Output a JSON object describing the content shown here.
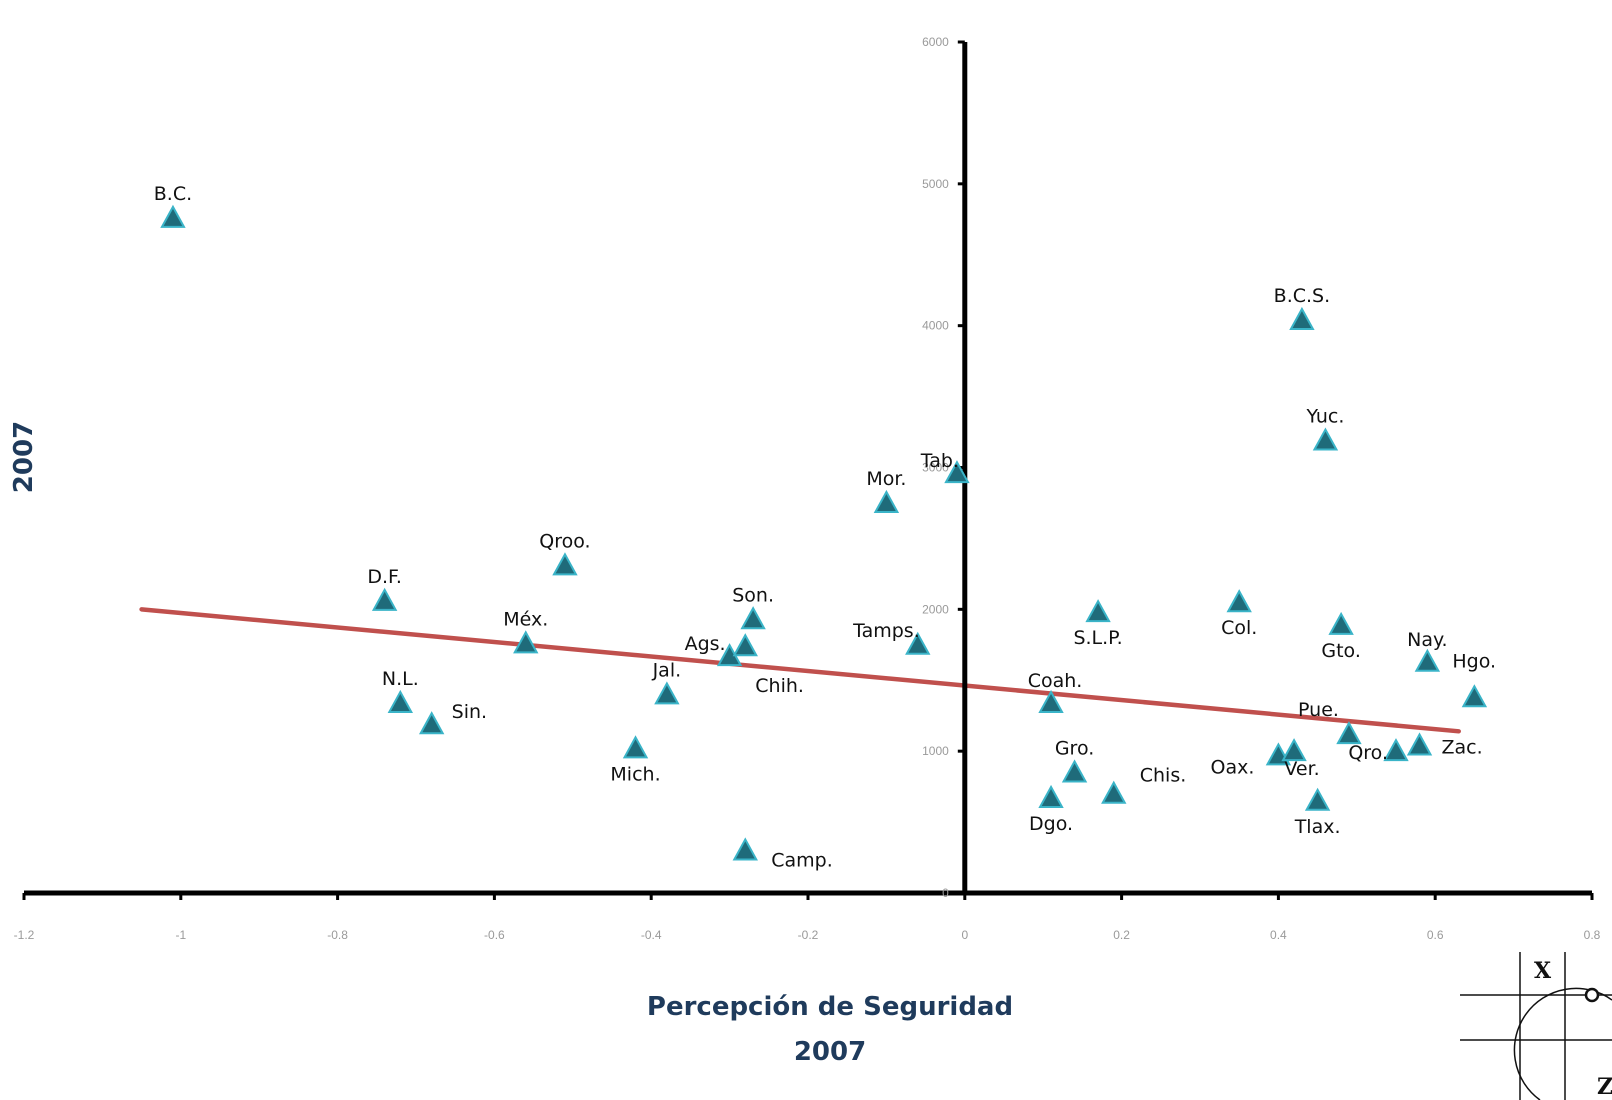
{
  "chart_data": {
    "type": "scatter",
    "xlabel_lines": [
      "Percepción de Seguridad",
      "2007"
    ],
    "ylabel": "2007",
    "xlim": [
      -1.2,
      0.8
    ],
    "ylim": [
      0,
      6000
    ],
    "x_ticks": [
      "-1.2",
      "-1",
      "-0.8",
      "-0.6",
      "-0.4",
      "-0.2",
      "0",
      "0.2",
      "0.4",
      "0.6",
      "0.8"
    ],
    "y_ticks": [
      "0",
      "1000",
      "2000",
      "3000",
      "4000",
      "5000",
      "6000"
    ],
    "marker_color": "#1f6b7a",
    "marker_edge_color": "#3ab4c8",
    "trendline_color": "#c0504d",
    "trendline": {
      "x": [
        -1.05,
        0.63
      ],
      "y": [
        2000,
        1140
      ]
    },
    "points": [
      {
        "label": "B.C.",
        "x": -1.01,
        "y": 4760
      },
      {
        "label": "B.C.S.",
        "x": 0.43,
        "y": 4040
      },
      {
        "label": "Yuc.",
        "x": 0.46,
        "y": 3190
      },
      {
        "label": "Tab.",
        "x": -0.01,
        "y": 2960
      },
      {
        "label": "Mor.",
        "x": -0.1,
        "y": 2750
      },
      {
        "label": "Qroo.",
        "x": -0.51,
        "y": 2310
      },
      {
        "label": "D.F.",
        "x": -0.74,
        "y": 2060
      },
      {
        "label": "Col.",
        "x": 0.35,
        "y": 2050
      },
      {
        "label": "S.L.P.",
        "x": 0.17,
        "y": 1980
      },
      {
        "label": "Son.",
        "x": -0.27,
        "y": 1930
      },
      {
        "label": "Gto.",
        "x": 0.48,
        "y": 1890
      },
      {
        "label": "Tamps.",
        "x": -0.06,
        "y": 1750
      },
      {
        "label": "Méx.",
        "x": -0.56,
        "y": 1760
      },
      {
        "label": "Ags.",
        "x": -0.3,
        "y": 1670
      },
      {
        "label": "Chih.",
        "x": -0.28,
        "y": 1740
      },
      {
        "label": "Nay.",
        "x": 0.59,
        "y": 1630
      },
      {
        "label": "Hgo.",
        "x": 0.65,
        "y": 1380
      },
      {
        "label": "Jal.",
        "x": -0.38,
        "y": 1400
      },
      {
        "label": "N.L.",
        "x": -0.72,
        "y": 1340
      },
      {
        "label": "Coah.",
        "x": 0.11,
        "y": 1340
      },
      {
        "label": "Sin.",
        "x": -0.68,
        "y": 1190
      },
      {
        "label": "Pue.",
        "x": 0.49,
        "y": 1120
      },
      {
        "label": "Zac.",
        "x": 0.58,
        "y": 1040
      },
      {
        "label": "Qro.",
        "x": 0.55,
        "y": 1000
      },
      {
        "label": "Mich.",
        "x": -0.42,
        "y": 1020
      },
      {
        "label": "Oax.",
        "x": 0.4,
        "y": 970
      },
      {
        "label": "Ver.",
        "x": 0.42,
        "y": 1000
      },
      {
        "label": "Gro.",
        "x": 0.14,
        "y": 850
      },
      {
        "label": "Chis.",
        "x": 0.19,
        "y": 700
      },
      {
        "label": "Tlax.",
        "x": 0.45,
        "y": 650
      },
      {
        "label": "Dgo.",
        "x": 0.11,
        "y": 670
      },
      {
        "label": "Camp.",
        "x": -0.28,
        "y": 300
      }
    ]
  },
  "logo": {
    "letter_x": "X",
    "letter_z": "Z"
  }
}
